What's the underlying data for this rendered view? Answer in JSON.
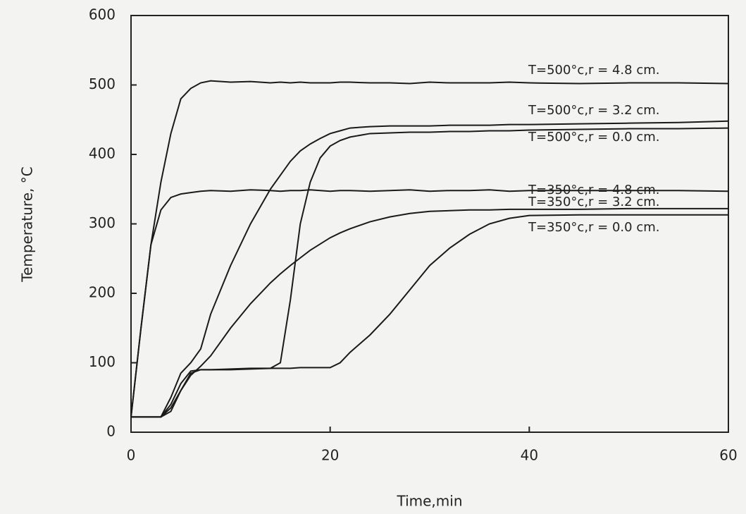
{
  "chart_data": {
    "type": "line",
    "x_label": "Time,min",
    "y_label": "Temperature, °C",
    "x": [
      0,
      1,
      2,
      3,
      4,
      5,
      6,
      7,
      8,
      10,
      12,
      14,
      15,
      16,
      17,
      18,
      19,
      20,
      21,
      22,
      24,
      26,
      28,
      30,
      32,
      34,
      36,
      38,
      40,
      45,
      50,
      55,
      60
    ],
    "xlim": [
      0,
      60
    ],
    "xticks": [
      0,
      20,
      40,
      60
    ],
    "ylim": [
      0,
      600
    ],
    "yticks": [
      0,
      100,
      200,
      300,
      400,
      500,
      600
    ],
    "series": [
      {
        "name": "T=500°c,r = 4.8 cm.",
        "color": "#1a1a1a",
        "values": [
          22,
          150,
          270,
          360,
          430,
          480,
          495,
          503,
          506,
          504,
          505,
          503,
          504,
          503,
          504,
          503,
          503,
          503,
          504,
          504,
          503,
          503,
          502,
          504,
          503,
          503,
          503,
          504,
          503,
          502,
          503,
          503,
          502
        ]
      },
      {
        "name": "T=500°c,r = 3.2 cm.",
        "color": "#1a1a1a",
        "values": [
          22,
          22,
          22,
          22,
          50,
          85,
          100,
          120,
          170,
          240,
          300,
          350,
          370,
          390,
          405,
          415,
          423,
          430,
          434,
          438,
          440,
          441,
          441,
          441,
          442,
          442,
          442,
          443,
          443,
          444,
          445,
          446,
          448
        ]
      },
      {
        "name": "T=500°c,r = 0.0 cm.",
        "color": "#1a1a1a",
        "values": [
          22,
          22,
          22,
          22,
          40,
          70,
          88,
          90,
          90,
          90,
          91,
          92,
          100,
          190,
          300,
          360,
          395,
          412,
          420,
          425,
          430,
          431,
          432,
          432,
          433,
          433,
          434,
          434,
          435,
          436,
          437,
          437,
          438
        ]
      },
      {
        "name": "T=350°c,r = 4.8 cm.",
        "color": "#1a1a1a",
        "values": [
          22,
          150,
          270,
          320,
          338,
          343,
          345,
          347,
          348,
          347,
          349,
          348,
          347,
          348,
          348,
          349,
          348,
          347,
          348,
          348,
          347,
          348,
          349,
          347,
          348,
          348,
          349,
          347,
          348,
          348,
          348,
          348,
          347
        ]
      },
      {
        "name": "T=350°c,r = 3.2 cm.",
        "color": "#1a1a1a",
        "values": [
          22,
          22,
          22,
          22,
          30,
          60,
          82,
          95,
          110,
          150,
          185,
          215,
          228,
          240,
          251,
          262,
          271,
          280,
          287,
          293,
          303,
          310,
          315,
          318,
          319,
          320,
          320,
          321,
          321,
          321,
          322,
          322,
          322
        ]
      },
      {
        "name": "T=350°c,r = 0.0 cm.",
        "color": "#1a1a1a",
        "values": [
          22,
          22,
          22,
          22,
          35,
          60,
          85,
          90,
          90,
          91,
          92,
          92,
          92,
          92,
          93,
          93,
          93,
          93,
          100,
          115,
          140,
          170,
          205,
          240,
          265,
          285,
          300,
          308,
          312,
          313,
          313,
          313,
          313
        ]
      }
    ]
  }
}
